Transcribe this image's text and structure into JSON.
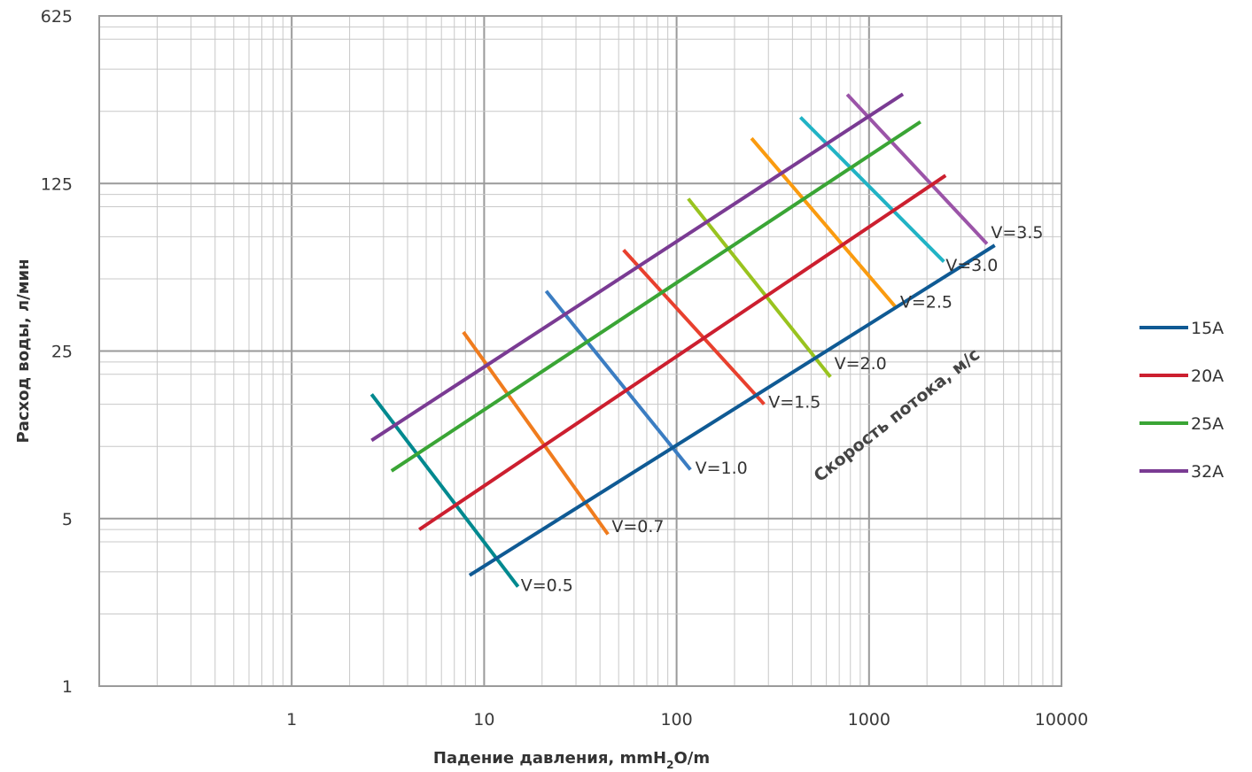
{
  "chart_data": {
    "type": "line",
    "xlabel_main": "Падение давления, mmH",
    "xlabel_sub": "2",
    "xlabel_tail": "O/m",
    "ylabel": "Расход воды, л/мин",
    "x_scale": "log",
    "y_scale": "log",
    "xlim": [
      0.1,
      10000
    ],
    "ylim": [
      1,
      625
    ],
    "x_ticks": [
      1,
      10,
      100,
      1000,
      10000
    ],
    "x_tick_labels": [
      "1",
      "10",
      "100",
      "1000",
      "10000"
    ],
    "y_ticks": [
      1,
      5,
      25,
      125,
      625
    ],
    "y_tick_labels": [
      "1",
      "5",
      "25",
      "125",
      "625"
    ],
    "grid": true,
    "legend_position": "right",
    "annotation": "Скорость потока, м/с",
    "series": [
      {
        "name": "15A",
        "color": "#0f5a94",
        "points": [
          [
            8.4,
            2.9
          ],
          [
            4500,
            69
          ]
        ]
      },
      {
        "name": "20A",
        "color": "#cc1f2f",
        "points": [
          [
            4.6,
            4.5
          ],
          [
            2500,
            135
          ]
        ]
      },
      {
        "name": "25A",
        "color": "#3aa535",
        "points": [
          [
            3.3,
            7.9
          ],
          [
            1850,
            226
          ]
        ]
      },
      {
        "name": "32A",
        "color": "#7a3b93",
        "points": [
          [
            2.6,
            10.6
          ],
          [
            1500,
            295
          ]
        ]
      }
    ],
    "velocity_lines": [
      {
        "label": "V=0.5",
        "color": "#00898f",
        "points": [
          [
            2.6,
            16.5
          ],
          [
            15,
            2.6
          ]
        ],
        "label_at": [
          15.5,
          2.5
        ]
      },
      {
        "label": "V=0.7",
        "color": "#f07c1e",
        "points": [
          [
            7.8,
            30
          ],
          [
            44,
            4.3
          ]
        ],
        "label_at": [
          46,
          4.4
        ]
      },
      {
        "label": "V=1.0",
        "color": "#3b7dc2",
        "points": [
          [
            21,
            44.5
          ],
          [
            118,
            8
          ]
        ],
        "label_at": [
          125,
          7.7
        ]
      },
      {
        "label": "V=1.5",
        "color": "#e8402e",
        "points": [
          [
            53,
            66
          ],
          [
            285,
            15
          ]
        ],
        "label_at": [
          300,
          14.5
        ]
      },
      {
        "label": "V=2.0",
        "color": "#99c31f",
        "points": [
          [
            115,
            108
          ],
          [
            630,
            19.5
          ]
        ],
        "label_at": [
          660,
          21
        ]
      },
      {
        "label": "V=2.5",
        "color": "#fa9b0f",
        "points": [
          [
            245,
            193
          ],
          [
            1380,
            38
          ]
        ],
        "label_at": [
          1450,
          38
        ]
      },
      {
        "label": "V=3.0",
        "color": "#21b3c5",
        "points": [
          [
            440,
            236
          ],
          [
            2450,
            59
          ]
        ],
        "label_at": [
          2500,
          54
        ]
      },
      {
        "label": "V=3.5",
        "color": "#9b54a8",
        "points": [
          [
            770,
            294
          ],
          [
            4100,
            70
          ]
        ],
        "label_at": [
          4300,
          74
        ]
      }
    ]
  }
}
